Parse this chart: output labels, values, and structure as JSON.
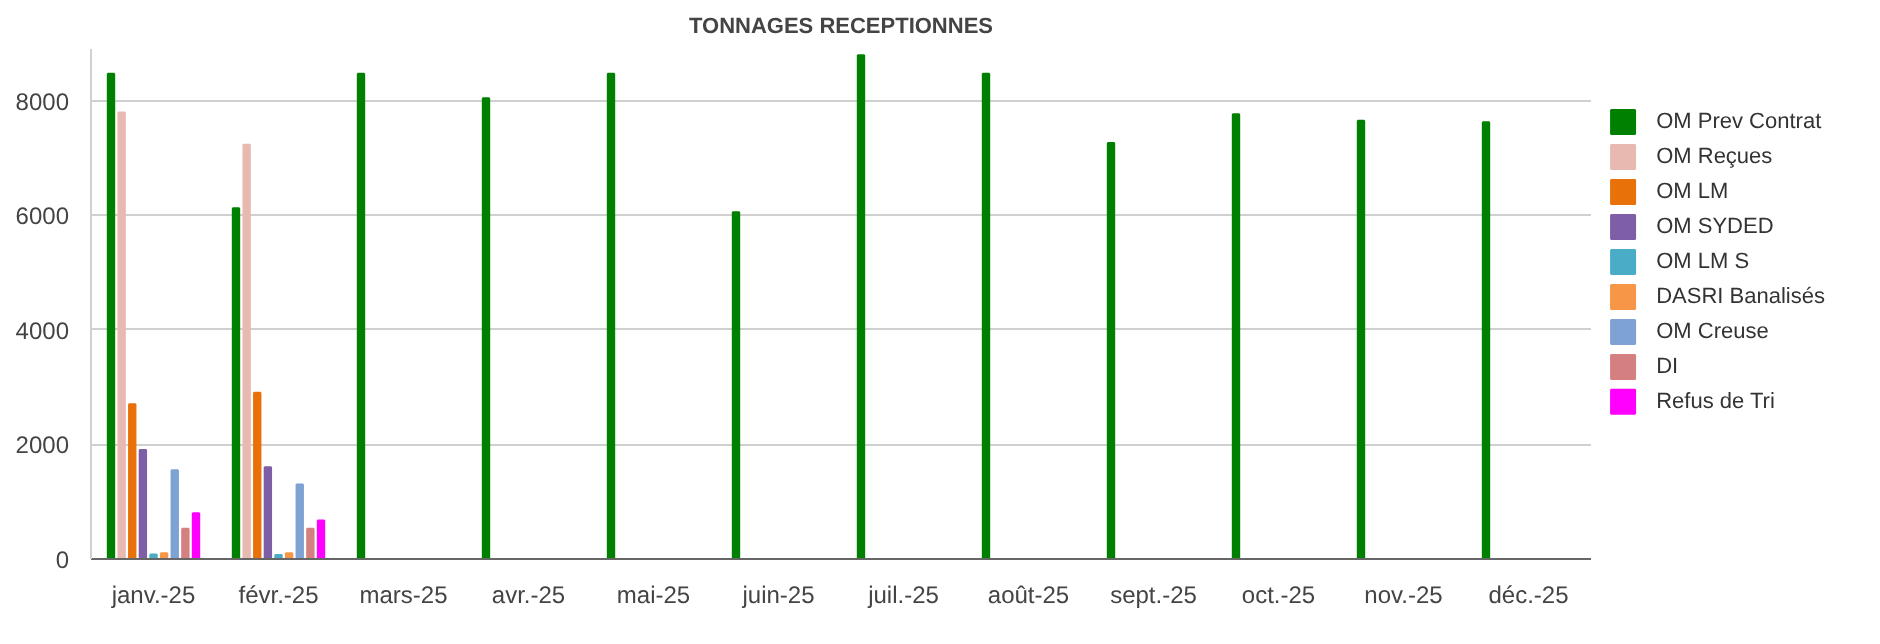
{
  "chart_data": {
    "type": "bar",
    "title": "TONNAGES RECEPTIONNES",
    "categories": [
      "janv.-25",
      "févr.-25",
      "mars-25",
      "avr.-25",
      "mai-25",
      "juin-25",
      "juil.-25",
      "août-25",
      "sept.-25",
      "oct.-25",
      "nov.-25",
      "déc.-25"
    ],
    "series": [
      {
        "name": "OM Prev Contrat",
        "color": "#008000",
        "values": [
          8470,
          6120,
          8470,
          8040,
          8470,
          6050,
          8790,
          8470,
          7260,
          7760,
          7650,
          7620
        ]
      },
      {
        "name": "OM Reçues",
        "color": "#e8b9b0",
        "values": [
          7790,
          7230,
          null,
          null,
          null,
          null,
          null,
          null,
          null,
          null,
          null,
          null
        ]
      },
      {
        "name": "OM LM",
        "color": "#e8710a",
        "values": [
          2700,
          2900,
          null,
          null,
          null,
          null,
          null,
          null,
          null,
          null,
          null,
          null
        ]
      },
      {
        "name": "OM SYDED",
        "color": "#7e5ea6",
        "values": [
          1900,
          1600,
          null,
          null,
          null,
          null,
          null,
          null,
          null,
          null,
          null,
          null
        ]
      },
      {
        "name": "OM LM S",
        "color": "#4aacc6",
        "values": [
          80,
          70,
          null,
          null,
          null,
          null,
          null,
          null,
          null,
          null,
          null,
          null
        ]
      },
      {
        "name": "DASRI Banalisés",
        "color": "#f79646",
        "values": [
          100,
          100,
          null,
          null,
          null,
          null,
          null,
          null,
          null,
          null,
          null,
          null
        ]
      },
      {
        "name": "OM Creuse",
        "color": "#7fa2d4",
        "values": [
          1550,
          1300,
          null,
          null,
          null,
          null,
          null,
          null,
          null,
          null,
          null,
          null
        ]
      },
      {
        "name": "DI",
        "color": "#d48080",
        "values": [
          530,
          530,
          null,
          null,
          null,
          null,
          null,
          null,
          null,
          null,
          null,
          null
        ]
      },
      {
        "name": "Refus de Tri",
        "color": "#ff00ff",
        "values": [
          800,
          670,
          null,
          null,
          null,
          null,
          null,
          null,
          null,
          null,
          null,
          null
        ]
      }
    ],
    "ylim": [
      0,
      8900
    ],
    "yticks": [
      0,
      2000,
      4000,
      6000,
      8000
    ],
    "grid": "y",
    "legend": "right"
  }
}
